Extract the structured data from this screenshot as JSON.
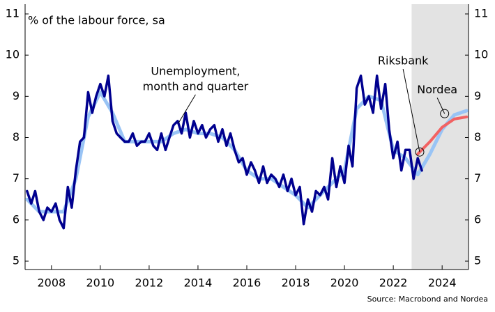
{
  "chart_data": {
    "type": "line",
    "ylabel": "% of the labour force, sa",
    "source": "Source: Macrobond and Nordea",
    "xlim": [
      2006.92,
      2025.08
    ],
    "xticks": [
      2008,
      2010,
      2012,
      2014,
      2016,
      2018,
      2020,
      2022,
      2024
    ],
    "ylim": [
      5,
      11
    ],
    "yticks": [
      5,
      6,
      7,
      8,
      9,
      10,
      11
    ],
    "y2lim": [
      5,
      11
    ],
    "y2ticks": [
      5,
      6,
      7,
      8,
      9,
      10,
      11
    ],
    "grid": false,
    "shade": {
      "color": "#e3e3e3",
      "x": [
        2022.75,
        2025.08
      ]
    },
    "series": [
      {
        "name": "Nordea",
        "color": "#99c4f5",
        "width": 5,
        "x": [
          2007.0,
          2007.5,
          2008.0,
          2008.5,
          2009.0,
          2009.5,
          2010.0,
          2010.5,
          2011.0,
          2011.5,
          2012.0,
          2012.5,
          2013.0,
          2013.5,
          2014.0,
          2014.5,
          2015.0,
          2015.5,
          2016.0,
          2016.5,
          2017.0,
          2017.5,
          2018.0,
          2018.5,
          2019.0,
          2019.5,
          2020.0,
          2020.5,
          2021.0,
          2021.5,
          2022.0,
          2022.5,
          2023.0,
          2023.5,
          2024.0,
          2024.5,
          2025.0
        ],
        "values": [
          6.5,
          6.2,
          6.2,
          6.2,
          7.0,
          8.5,
          9.1,
          8.6,
          7.9,
          7.9,
          7.9,
          7.9,
          8.1,
          8.2,
          8.1,
          8.1,
          8.0,
          7.7,
          7.2,
          7.0,
          7.0,
          6.8,
          6.6,
          6.3,
          6.6,
          6.9,
          7.2,
          8.7,
          9.0,
          8.9,
          7.7,
          7.5,
          7.1,
          7.6,
          8.2,
          8.55,
          8.65
        ]
      },
      {
        "name": "Riksbank",
        "color": "#f26262",
        "width": 4,
        "x": [
          2023.0,
          2023.5,
          2024.0,
          2024.5,
          2025.0
        ],
        "values": [
          7.6,
          7.9,
          8.25,
          8.45,
          8.5
        ]
      },
      {
        "name": "Unemployment, month and quarter",
        "color": "#00008f",
        "width": 3.5,
        "x": [
          2007.0,
          2007.17,
          2007.33,
          2007.5,
          2007.67,
          2007.83,
          2008.0,
          2008.17,
          2008.33,
          2008.5,
          2008.67,
          2008.83,
          2009.0,
          2009.17,
          2009.33,
          2009.5,
          2009.67,
          2009.83,
          2010.0,
          2010.17,
          2010.33,
          2010.5,
          2010.67,
          2010.83,
          2011.0,
          2011.17,
          2011.33,
          2011.5,
          2011.67,
          2011.83,
          2012.0,
          2012.17,
          2012.33,
          2012.5,
          2012.67,
          2012.83,
          2013.0,
          2013.17,
          2013.33,
          2013.5,
          2013.67,
          2013.83,
          2014.0,
          2014.17,
          2014.33,
          2014.5,
          2014.67,
          2014.83,
          2015.0,
          2015.17,
          2015.33,
          2015.5,
          2015.67,
          2015.83,
          2016.0,
          2016.17,
          2016.33,
          2016.5,
          2016.67,
          2016.83,
          2017.0,
          2017.17,
          2017.33,
          2017.5,
          2017.67,
          2017.83,
          2018.0,
          2018.17,
          2018.33,
          2018.5,
          2018.67,
          2018.83,
          2019.0,
          2019.17,
          2019.33,
          2019.5,
          2019.67,
          2019.83,
          2020.0,
          2020.17,
          2020.33,
          2020.5,
          2020.67,
          2020.83,
          2021.0,
          2021.17,
          2021.33,
          2021.5,
          2021.67,
          2021.83,
          2022.0,
          2022.17,
          2022.33,
          2022.5,
          2022.67,
          2022.83,
          2023.0,
          2023.17
        ],
        "values": [
          6.7,
          6.4,
          6.7,
          6.2,
          6.0,
          6.3,
          6.2,
          6.4,
          6.0,
          5.8,
          6.8,
          6.3,
          7.2,
          7.9,
          8.0,
          9.1,
          8.6,
          9.0,
          9.3,
          9.0,
          9.5,
          8.4,
          8.1,
          8.0,
          7.9,
          7.9,
          8.1,
          7.8,
          7.9,
          7.9,
          8.1,
          7.8,
          7.7,
          8.1,
          7.7,
          8.0,
          8.3,
          8.4,
          8.1,
          8.6,
          8.0,
          8.4,
          8.1,
          8.3,
          8.0,
          8.2,
          8.3,
          7.9,
          8.2,
          7.8,
          8.1,
          7.7,
          7.4,
          7.5,
          7.1,
          7.4,
          7.2,
          6.9,
          7.3,
          6.9,
          7.1,
          7.0,
          6.8,
          7.1,
          6.7,
          7.0,
          6.6,
          6.8,
          5.9,
          6.5,
          6.2,
          6.7,
          6.6,
          6.8,
          6.5,
          7.5,
          6.8,
          7.3,
          6.9,
          7.8,
          7.3,
          9.2,
          9.5,
          8.8,
          9.0,
          8.6,
          9.5,
          8.7,
          9.3,
          8.2,
          7.5,
          7.9,
          7.2,
          7.7,
          7.7,
          7.0,
          7.5,
          7.2
        ]
      }
    ],
    "annotations": [
      {
        "lines": [
          "Unemployment,",
          "month and quarter"
        ],
        "x": 2013.9,
        "y": 9.6,
        "target": [
          2013.2,
          8.35
        ]
      },
      {
        "lines": [
          "Riksbank"
        ],
        "x": 2022.4,
        "y": 9.85,
        "target": [
          2023.08,
          7.65
        ]
      },
      {
        "lines": [
          "Nordea"
        ],
        "x": 2023.8,
        "y": 9.15,
        "target": [
          2024.1,
          8.58
        ]
      }
    ]
  }
}
